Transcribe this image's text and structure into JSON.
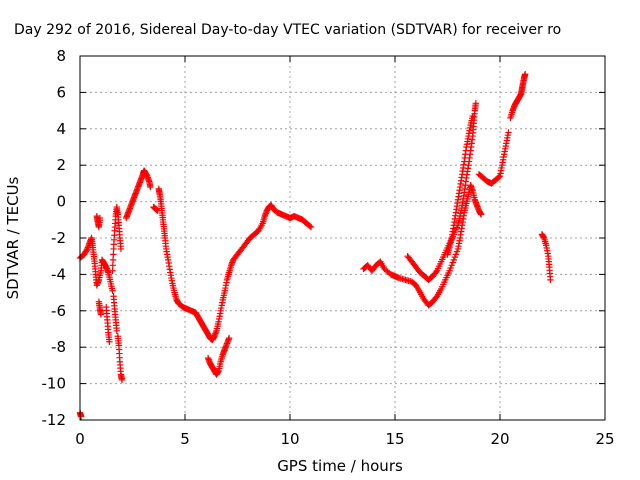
{
  "chart_data": {
    "type": "scatter",
    "title": "Day 292 of 2016, Sidereal Day-to-day VTEC variation (SDTVAR) for receiver ro",
    "xlabel": "GPS time / hours",
    "ylabel": "SDTVAR / TECUs",
    "xlim": [
      0,
      25
    ],
    "ylim": [
      -12,
      8
    ],
    "xticks": [
      "0",
      "5",
      "10",
      "15",
      "20",
      "25"
    ],
    "yticks": [
      "-12",
      "-10",
      "-8",
      "-6",
      "-4",
      "-2",
      "0",
      "2",
      "4",
      "6",
      "8"
    ],
    "grid": true,
    "marker": "+",
    "color": "#ff0000",
    "segments": [
      [
        [
          0.0,
          -11.6
        ],
        [
          0.05,
          -11.8
        ]
      ],
      [
        [
          0.0,
          -3.1
        ],
        [
          0.2,
          -2.9
        ],
        [
          0.35,
          -2.6
        ],
        [
          0.45,
          -2.3
        ],
        [
          0.55,
          -2.0
        ],
        [
          0.6,
          -2.4
        ],
        [
          0.65,
          -2.9
        ],
        [
          0.7,
          -3.4
        ],
        [
          0.75,
          -4.0
        ],
        [
          0.8,
          -4.6
        ],
        [
          0.9,
          -4.3
        ],
        [
          1.0,
          -3.8
        ],
        [
          1.05,
          -3.2
        ],
        [
          1.15,
          -3.4
        ],
        [
          1.25,
          -3.6
        ],
        [
          1.35,
          -3.9
        ],
        [
          1.45,
          -4.4
        ],
        [
          1.55,
          -4.9
        ]
      ],
      [
        [
          0.8,
          -0.8
        ],
        [
          0.85,
          -1.1
        ],
        [
          0.9,
          -1.4
        ],
        [
          0.95,
          -0.9
        ]
      ],
      [
        [
          0.9,
          -5.5
        ],
        [
          0.95,
          -5.9
        ],
        [
          1.0,
          -6.2
        ]
      ],
      [
        [
          1.25,
          -5.8
        ],
        [
          1.3,
          -6.5
        ],
        [
          1.35,
          -7.2
        ],
        [
          1.4,
          -7.7
        ]
      ],
      [
        [
          1.55,
          -3.8
        ],
        [
          1.6,
          -2.6
        ],
        [
          1.65,
          -1.6
        ],
        [
          1.7,
          -0.8
        ],
        [
          1.75,
          -0.3
        ],
        [
          1.8,
          -0.7
        ],
        [
          1.85,
          -1.3
        ],
        [
          1.9,
          -2.0
        ],
        [
          1.95,
          -2.6
        ]
      ],
      [
        [
          1.6,
          -5.2
        ],
        [
          1.65,
          -5.9
        ],
        [
          1.7,
          -6.5
        ],
        [
          1.75,
          -7.1
        ]
      ],
      [
        [
          1.8,
          -7.4
        ],
        [
          1.85,
          -7.9
        ],
        [
          1.9,
          -8.8
        ],
        [
          1.95,
          -9.5
        ],
        [
          2.0,
          -9.8
        ]
      ],
      [
        [
          2.2,
          -0.9
        ],
        [
          2.3,
          -0.6
        ],
        [
          2.4,
          -0.3
        ],
        [
          2.5,
          0.0
        ],
        [
          2.6,
          0.3
        ],
        [
          2.7,
          0.6
        ],
        [
          2.8,
          0.9
        ],
        [
          2.9,
          1.2
        ],
        [
          3.0,
          1.5
        ],
        [
          3.05,
          1.7
        ],
        [
          3.1,
          1.6
        ],
        [
          3.2,
          1.4
        ],
        [
          3.3,
          1.1
        ],
        [
          3.35,
          0.8
        ]
      ],
      [
        [
          3.5,
          -0.3
        ],
        [
          3.6,
          -0.4
        ],
        [
          3.7,
          -0.5
        ]
      ],
      [
        [
          3.75,
          0.7
        ],
        [
          3.8,
          0.4
        ],
        [
          3.85,
          0.0
        ],
        [
          3.9,
          -0.5
        ],
        [
          3.95,
          -1.0
        ],
        [
          4.0,
          -1.5
        ],
        [
          4.05,
          -2.0
        ],
        [
          4.1,
          -2.6
        ],
        [
          4.2,
          -3.2
        ],
        [
          4.3,
          -3.9
        ],
        [
          4.4,
          -4.5
        ],
        [
          4.5,
          -5.0
        ],
        [
          4.6,
          -5.4
        ],
        [
          4.7,
          -5.6
        ],
        [
          4.9,
          -5.8
        ],
        [
          5.1,
          -5.9
        ],
        [
          5.3,
          -6.0
        ],
        [
          5.5,
          -6.1
        ],
        [
          5.6,
          -6.3
        ],
        [
          5.7,
          -6.5
        ],
        [
          5.8,
          -6.7
        ],
        [
          5.9,
          -6.9
        ],
        [
          6.0,
          -7.1
        ],
        [
          6.1,
          -7.3
        ],
        [
          6.2,
          -7.5
        ],
        [
          6.3,
          -7.6
        ],
        [
          6.4,
          -7.4
        ],
        [
          6.5,
          -7.1
        ],
        [
          6.6,
          -6.6
        ],
        [
          6.7,
          -6.0
        ],
        [
          6.8,
          -5.4
        ],
        [
          6.9,
          -4.9
        ],
        [
          7.0,
          -4.3
        ],
        [
          7.1,
          -3.9
        ],
        [
          7.2,
          -3.5
        ],
        [
          7.3,
          -3.2
        ],
        [
          7.5,
          -2.9
        ],
        [
          7.7,
          -2.6
        ],
        [
          7.9,
          -2.3
        ],
        [
          8.1,
          -2.0
        ],
        [
          8.3,
          -1.8
        ],
        [
          8.5,
          -1.6
        ],
        [
          8.7,
          -1.2
        ],
        [
          8.8,
          -0.8
        ],
        [
          8.9,
          -0.5
        ],
        [
          9.0,
          -0.3
        ],
        [
          9.1,
          -0.2
        ],
        [
          9.2,
          -0.4
        ],
        [
          9.4,
          -0.6
        ],
        [
          9.6,
          -0.7
        ],
        [
          9.8,
          -0.8
        ],
        [
          10.0,
          -0.9
        ],
        [
          10.2,
          -0.8
        ],
        [
          10.4,
          -0.9
        ],
        [
          10.6,
          -1.0
        ],
        [
          10.8,
          -1.2
        ],
        [
          11.0,
          -1.4
        ]
      ],
      [
        [
          6.1,
          -8.6
        ],
        [
          6.2,
          -8.9
        ],
        [
          6.3,
          -9.1
        ],
        [
          6.4,
          -9.3
        ],
        [
          6.5,
          -9.5
        ],
        [
          6.6,
          -9.3
        ],
        [
          6.7,
          -8.8
        ],
        [
          6.8,
          -8.4
        ],
        [
          6.9,
          -8.1
        ],
        [
          7.0,
          -7.8
        ],
        [
          7.1,
          -7.5
        ]
      ],
      [
        [
          13.5,
          -3.7
        ],
        [
          13.7,
          -3.5
        ],
        [
          13.9,
          -3.8
        ],
        [
          14.1,
          -3.5
        ],
        [
          14.3,
          -3.3
        ],
        [
          14.5,
          -3.7
        ],
        [
          14.8,
          -4.0
        ],
        [
          15.0,
          -4.1
        ],
        [
          15.2,
          -4.2
        ],
        [
          15.5,
          -4.3
        ],
        [
          15.8,
          -4.4
        ],
        [
          16.0,
          -4.6
        ],
        [
          16.2,
          -5.0
        ],
        [
          16.4,
          -5.4
        ],
        [
          16.6,
          -5.7
        ],
        [
          16.8,
          -5.5
        ],
        [
          17.0,
          -5.2
        ],
        [
          17.2,
          -4.8
        ],
        [
          17.4,
          -4.3
        ],
        [
          17.6,
          -3.8
        ],
        [
          17.8,
          -3.2
        ],
        [
          18.0,
          -2.6
        ],
        [
          18.1,
          -2.0
        ],
        [
          18.2,
          -1.3
        ],
        [
          18.3,
          -0.6
        ],
        [
          18.4,
          -0.1
        ],
        [
          18.5,
          0.4
        ],
        [
          18.6,
          0.9
        ],
        [
          18.7,
          0.6
        ],
        [
          18.8,
          0.1
        ],
        [
          18.9,
          -0.2
        ],
        [
          19.0,
          -0.5
        ],
        [
          19.1,
          -0.7
        ]
      ],
      [
        [
          15.6,
          -3.0
        ],
        [
          15.8,
          -3.3
        ],
        [
          16.0,
          -3.6
        ],
        [
          16.2,
          -3.9
        ],
        [
          16.4,
          -4.1
        ],
        [
          16.6,
          -4.3
        ],
        [
          16.8,
          -4.1
        ],
        [
          17.0,
          -3.8
        ],
        [
          17.2,
          -3.3
        ],
        [
          17.4,
          -2.8
        ],
        [
          17.6,
          -2.3
        ],
        [
          17.8,
          -1.8
        ],
        [
          18.0,
          -1.3
        ],
        [
          18.1,
          -0.8
        ],
        [
          18.2,
          -0.2
        ],
        [
          18.3,
          0.5
        ],
        [
          18.4,
          1.3
        ],
        [
          18.5,
          2.0
        ],
        [
          18.6,
          2.8
        ],
        [
          18.7,
          3.6
        ],
        [
          18.75,
          4.3
        ],
        [
          18.8,
          5.0
        ],
        [
          18.85,
          5.4
        ]
      ],
      [
        [
          17.5,
          -2.9
        ],
        [
          17.6,
          -2.5
        ],
        [
          17.7,
          -2.0
        ],
        [
          17.8,
          -1.3
        ],
        [
          17.9,
          -0.6
        ],
        [
          18.0,
          0.1
        ],
        [
          18.1,
          0.8
        ],
        [
          18.2,
          1.5
        ],
        [
          18.3,
          2.2
        ],
        [
          18.4,
          3.0
        ],
        [
          18.5,
          3.6
        ],
        [
          18.6,
          4.2
        ],
        [
          18.7,
          4.7
        ]
      ],
      [
        [
          19.0,
          1.5
        ],
        [
          19.2,
          1.3
        ],
        [
          19.4,
          1.1
        ],
        [
          19.6,
          1.0
        ],
        [
          19.8,
          1.2
        ],
        [
          20.0,
          1.4
        ],
        [
          20.1,
          2.0
        ],
        [
          20.2,
          2.6
        ],
        [
          20.3,
          3.2
        ],
        [
          20.4,
          3.8
        ]
      ],
      [
        [
          20.5,
          4.6
        ],
        [
          20.6,
          5.0
        ],
        [
          20.7,
          5.3
        ],
        [
          20.8,
          5.5
        ],
        [
          20.9,
          5.7
        ],
        [
          21.0,
          5.9
        ],
        [
          21.05,
          6.2
        ],
        [
          21.1,
          6.5
        ],
        [
          21.15,
          6.8
        ],
        [
          21.2,
          7.0
        ]
      ],
      [
        [
          22.0,
          -1.8
        ],
        [
          22.1,
          -2.0
        ],
        [
          22.2,
          -2.4
        ],
        [
          22.3,
          -3.0
        ],
        [
          22.35,
          -3.6
        ],
        [
          22.4,
          -4.3
        ]
      ]
    ]
  }
}
